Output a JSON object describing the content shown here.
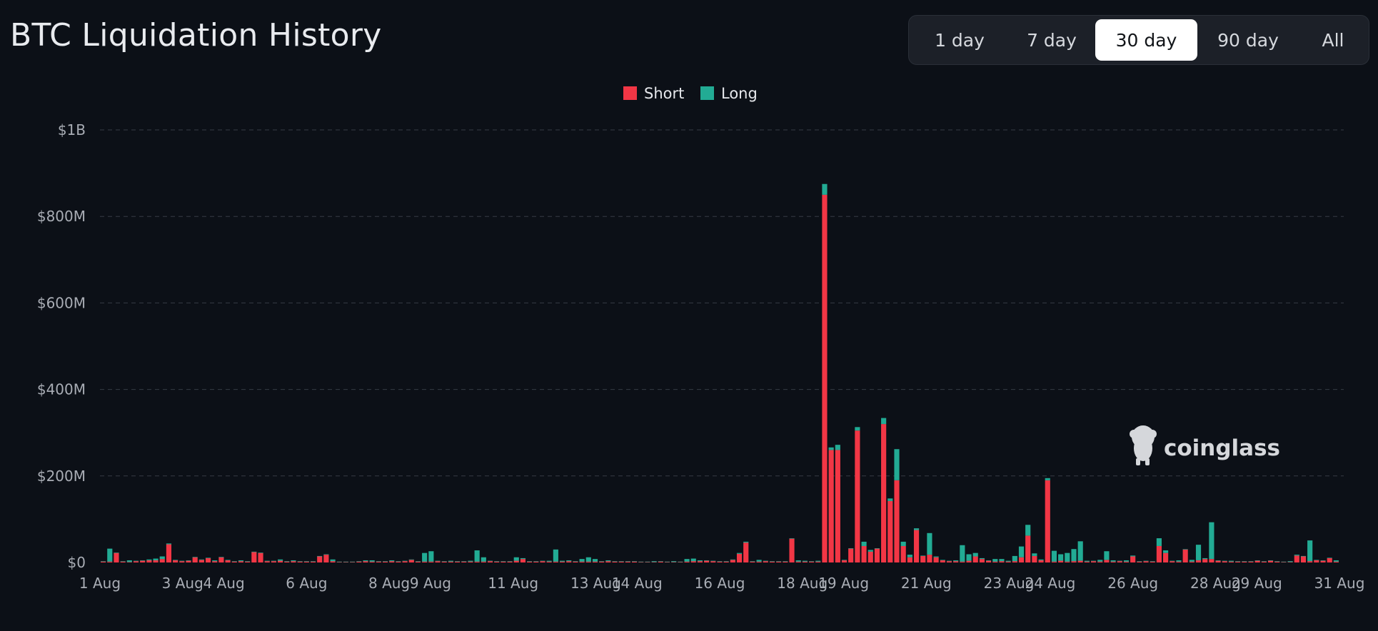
{
  "header": {
    "title": "BTC Liquidation History"
  },
  "range_tabs": [
    {
      "label": "1 day",
      "active": false
    },
    {
      "label": "7 day",
      "active": false
    },
    {
      "label": "30 day",
      "active": true
    },
    {
      "label": "90 day",
      "active": false
    },
    {
      "label": "All",
      "active": false
    }
  ],
  "watermark": {
    "text": "coinglass",
    "icon": "coinglass-logo-icon"
  },
  "colors": {
    "short": "#f23645",
    "long": "#22ab94",
    "grid": "#363b45",
    "background": "#0c1017"
  },
  "chart_data": {
    "type": "bar",
    "stacked": true,
    "legend": [
      "Short",
      "Long"
    ],
    "legend_position": "top-center",
    "grid": "horizontal-dashed",
    "y_ticks": [
      "$0",
      "$200M",
      "$400M",
      "$600M",
      "$800M",
      "$1B"
    ],
    "ylim_millions": [
      0,
      1000
    ],
    "x_ticks": [
      "1 Aug",
      "3 Aug",
      "4 Aug",
      "6 Aug",
      "8 Aug",
      "9 Aug",
      "11 Aug",
      "13 Aug",
      "14 Aug",
      "16 Aug",
      "18 Aug",
      "19 Aug",
      "21 Aug",
      "23 Aug",
      "24 Aug",
      "26 Aug",
      "28 Aug",
      "29 Aug",
      "31 Aug"
    ],
    "x_range_days": [
      1,
      31
    ],
    "bar_interval_hours": 4,
    "series": [
      {
        "name": "Short",
        "values": [
          2,
          2,
          22,
          2,
          1,
          3,
          4,
          5,
          5,
          8,
          42,
          5,
          3,
          4,
          12,
          6,
          10,
          3,
          12,
          5,
          2,
          3,
          2,
          24,
          22,
          3,
          3,
          4,
          2,
          3,
          2,
          2,
          2,
          14,
          18,
          3,
          1,
          1,
          1,
          2,
          3,
          2,
          2,
          2,
          3,
          2,
          3,
          6,
          2,
          2,
          2,
          3,
          2,
          2,
          2,
          2,
          2,
          2,
          2,
          3,
          2,
          2,
          2,
          4,
          8,
          2,
          2,
          3,
          2,
          2,
          2,
          3,
          2,
          2,
          2,
          2,
          2,
          3,
          2,
          2,
          2,
          2,
          1,
          1,
          1,
          2,
          1,
          1,
          1,
          2,
          3,
          3,
          4,
          3,
          2,
          2,
          6,
          20,
          46,
          2,
          2,
          3,
          2,
          2,
          2,
          55,
          2,
          2,
          2,
          2,
          850,
          260,
          260,
          5,
          32,
          305,
          38,
          25,
          32,
          320,
          142,
          190,
          38,
          12,
          75,
          15,
          18,
          12,
          5,
          3,
          3,
          2,
          4,
          14,
          8,
          4,
          2,
          3,
          2,
          3,
          12,
          62,
          15,
          5,
          190,
          2,
          4,
          2,
          3,
          4,
          2,
          3,
          2,
          6,
          2,
          3,
          2,
          14,
          2,
          3,
          2,
          38,
          22,
          3,
          2,
          30,
          2,
          5,
          8,
          8,
          4,
          3,
          2,
          2,
          2,
          2,
          4,
          2,
          4,
          2,
          1,
          1,
          16,
          14,
          3,
          5,
          4,
          10,
          2
        ]
      },
      {
        "name": "Long",
        "values": [
          1,
          30,
          1,
          1,
          4,
          1,
          1,
          2,
          4,
          6,
          2,
          1,
          1,
          1,
          1,
          1,
          1,
          2,
          1,
          1,
          1,
          2,
          1,
          1,
          1,
          1,
          1,
          3,
          1,
          2,
          1,
          1,
          1,
          1,
          1,
          4,
          1,
          1,
          1,
          1,
          2,
          3,
          1,
          1,
          2,
          1,
          1,
          1,
          1,
          20,
          24,
          1,
          1,
          2,
          1,
          1,
          2,
          26,
          10,
          1,
          1,
          1,
          1,
          8,
          2,
          1,
          1,
          1,
          2,
          28,
          2,
          2,
          1,
          6,
          10,
          6,
          1,
          2,
          1,
          1,
          1,
          1,
          1,
          1,
          2,
          1,
          1,
          2,
          1,
          6,
          6,
          2,
          1,
          1,
          1,
          1,
          1,
          2,
          2,
          1,
          4,
          1,
          1,
          1,
          1,
          1,
          3,
          2,
          1,
          2,
          25,
          6,
          12,
          1,
          1,
          8,
          10,
          4,
          1,
          14,
          6,
          72,
          10,
          6,
          4,
          1,
          50,
          2,
          1,
          1,
          2,
          38,
          15,
          8,
          2,
          1,
          6,
          5,
          2,
          12,
          25,
          25,
          6,
          2,
          5,
          25,
          15,
          20,
          28,
          45,
          2,
          1,
          4,
          20,
          3,
          1,
          3,
          2,
          1,
          1,
          1,
          18,
          6,
          1,
          3,
          1,
          4,
          36,
          2,
          85,
          1,
          1,
          2,
          1,
          1,
          1,
          1,
          1,
          1,
          1,
          1,
          2,
          2,
          1,
          48,
          1,
          1,
          1,
          3
        ]
      }
    ]
  }
}
